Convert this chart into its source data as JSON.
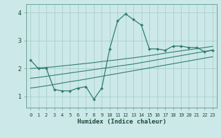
{
  "xlabel": "Humidex (Indice chaleur)",
  "ylabel": "",
  "bg_color": "#cce8e8",
  "line_color": "#2e7d6e",
  "grid_color": "#aacece",
  "xlim": [
    -0.5,
    23.5
  ],
  "ylim": [
    0.6,
    4.3
  ],
  "yticks": [
    1,
    2,
    3,
    4
  ],
  "xticks": [
    0,
    1,
    2,
    3,
    4,
    5,
    6,
    7,
    8,
    9,
    10,
    11,
    12,
    13,
    14,
    15,
    16,
    17,
    18,
    19,
    20,
    21,
    22,
    23
  ],
  "line1_x": [
    0,
    1,
    2,
    3,
    4,
    5,
    6,
    7,
    8,
    9,
    10,
    11,
    12,
    13,
    14,
    15,
    16,
    17,
    18,
    19,
    20,
    21,
    22,
    23
  ],
  "line1_y": [
    2.3,
    2.0,
    2.0,
    1.25,
    1.2,
    1.2,
    1.3,
    1.35,
    0.9,
    1.3,
    2.7,
    3.7,
    3.95,
    3.75,
    3.55,
    2.7,
    2.7,
    2.65,
    2.8,
    2.8,
    2.75,
    2.75,
    2.6,
    2.65
  ],
  "line2_x": [
    0,
    1,
    2,
    3,
    4,
    5,
    6,
    7,
    8,
    9,
    10,
    11,
    12,
    13,
    14,
    15,
    16,
    17,
    18,
    19,
    20,
    21,
    22,
    23
  ],
  "line2_y": [
    2.0,
    2.02,
    2.04,
    2.06,
    2.09,
    2.12,
    2.15,
    2.18,
    2.21,
    2.25,
    2.28,
    2.31,
    2.35,
    2.38,
    2.42,
    2.46,
    2.5,
    2.55,
    2.59,
    2.63,
    2.67,
    2.71,
    2.75,
    2.79
  ],
  "line3_x": [
    0,
    1,
    2,
    3,
    4,
    5,
    6,
    7,
    8,
    9,
    10,
    11,
    12,
    13,
    14,
    15,
    16,
    17,
    18,
    19,
    20,
    21,
    22,
    23
  ],
  "line3_y": [
    1.65,
    1.68,
    1.72,
    1.76,
    1.8,
    1.84,
    1.88,
    1.92,
    1.96,
    2.0,
    2.04,
    2.08,
    2.12,
    2.16,
    2.21,
    2.26,
    2.31,
    2.36,
    2.41,
    2.46,
    2.51,
    2.56,
    2.61,
    2.66
  ],
  "line4_x": [
    0,
    1,
    2,
    3,
    4,
    5,
    6,
    7,
    8,
    9,
    10,
    11,
    12,
    13,
    14,
    15,
    16,
    17,
    18,
    19,
    20,
    21,
    22,
    23
  ],
  "line4_y": [
    1.3,
    1.34,
    1.38,
    1.43,
    1.48,
    1.53,
    1.57,
    1.62,
    1.67,
    1.72,
    1.77,
    1.82,
    1.87,
    1.92,
    1.97,
    2.02,
    2.07,
    2.12,
    2.17,
    2.22,
    2.27,
    2.32,
    2.37,
    2.42
  ]
}
